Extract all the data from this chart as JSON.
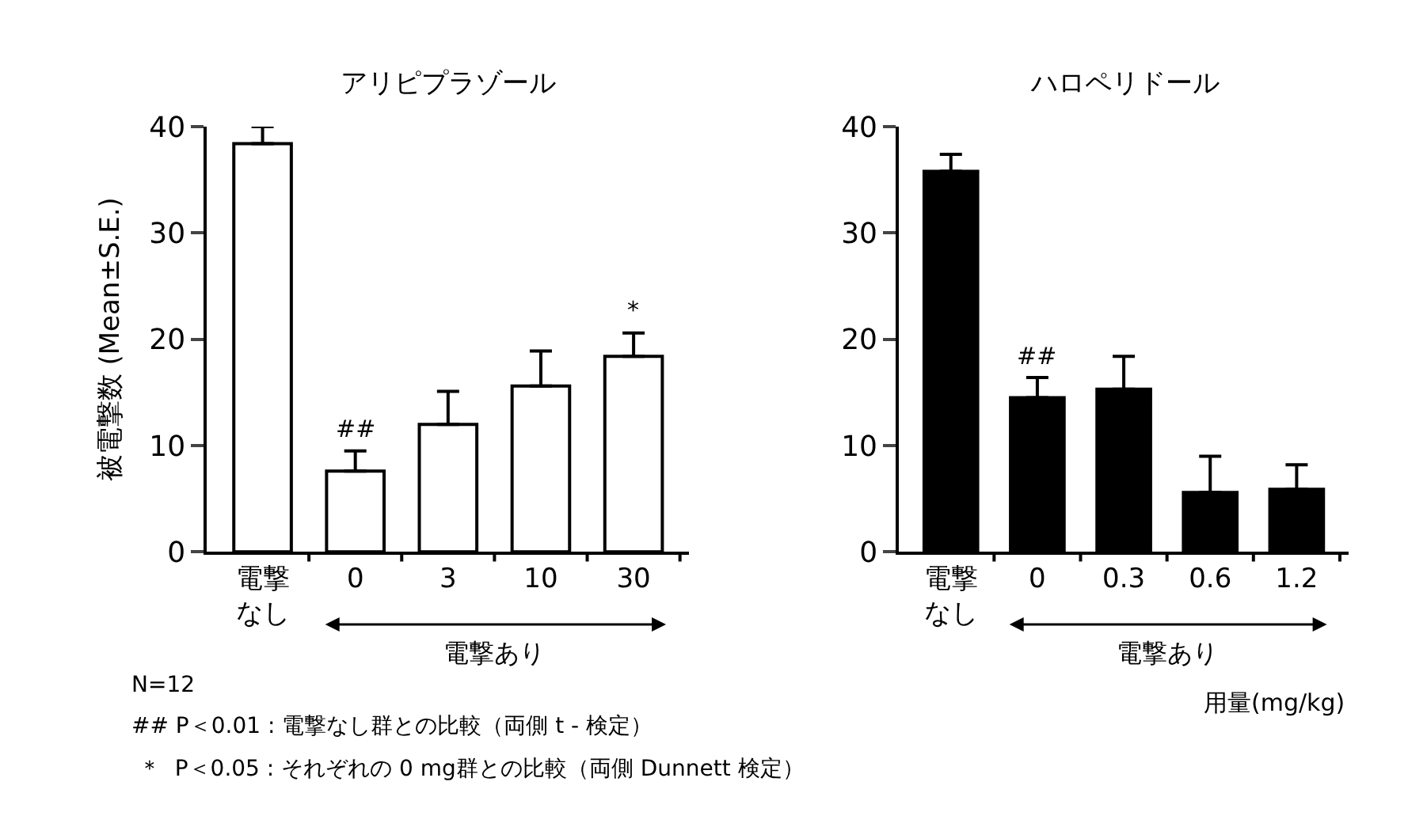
{
  "chart_data": [
    {
      "type": "bar",
      "title": "アリピプラゾール",
      "ylabel": "被電撃数 (Mean±S.E.)",
      "xlabel": "電撃あり",
      "categories": [
        "電撃なし",
        "0",
        "3",
        "10",
        "30"
      ],
      "series": [
        {
          "color": "#ffffff",
          "values": [
            38.4,
            7.6,
            12.0,
            15.6,
            18.4
          ],
          "errors": [
            [
              38.4,
              40.0
            ],
            [
              7.6,
              9.5
            ],
            [
              12.0,
              15.1
            ],
            [
              15.6,
              18.9
            ],
            [
              18.4,
              20.6
            ]
          ]
        }
      ],
      "ylim": [
        0,
        40
      ],
      "yticks": [
        0,
        10,
        20,
        30,
        40
      ],
      "annotations": [
        {
          "text": "##",
          "x": "0",
          "y": 9.5
        },
        {
          "text": "*",
          "x": "30",
          "y": 20.6
        },
        "N=12",
        "## P＜0.01 : 電撃なし群との比較（両側 t - 検定）",
        " ＊  P＜0.05 : それぞれの 0 mg群との比較（両側 Dunnett 検定）"
      ]
    },
    {
      "type": "bar",
      "title": "ハロペリドール",
      "xlabel": "電撃あり",
      "categories": [
        "電撃なし",
        "0",
        "0.3",
        "0.6",
        "1.2"
      ],
      "series": [
        {
          "color": "#000000",
          "values": [
            35.8,
            14.5,
            15.3,
            5.6,
            5.9
          ],
          "errors": [
            [
              35.8,
              37.4
            ],
            [
              14.5,
              16.4
            ],
            [
              15.3,
              18.4
            ],
            [
              5.6,
              9.0
            ],
            [
              5.9,
              8.2
            ]
          ]
        }
      ],
      "ylim": [
        0,
        40
      ],
      "yticks": [
        0,
        10,
        20,
        30,
        40
      ],
      "annotations": [
        {
          "text": "##",
          "x": "0",
          "y": 16.4
        },
        "用量(mg/kg)"
      ]
    }
  ]
}
